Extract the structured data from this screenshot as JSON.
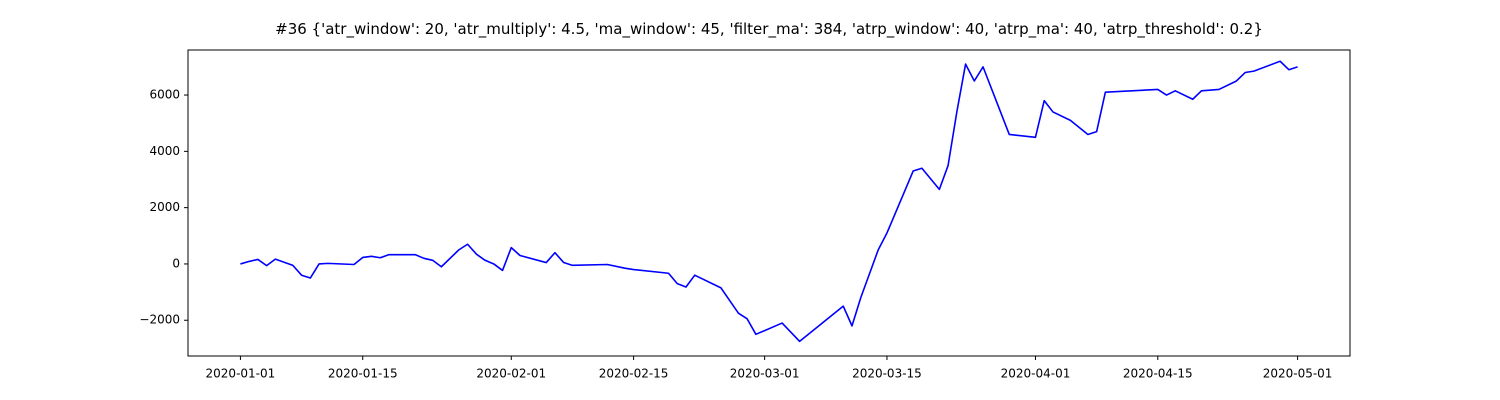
{
  "chart_data": {
    "type": "line",
    "title": "#36 {'atr_window': 20, 'atr_multiply': 4.5, 'ma_window': 45, 'filter_ma': 384, 'atrp_window': 40, 'atrp_ma': 40, 'atrp_threshold': 0.2}",
    "x": [
      "2020-01-01",
      "2020-01-02",
      "2020-01-03",
      "2020-01-04",
      "2020-01-05",
      "2020-01-07",
      "2020-01-08",
      "2020-01-09",
      "2020-01-10",
      "2020-01-11",
      "2020-01-14",
      "2020-01-15",
      "2020-01-16",
      "2020-01-17",
      "2020-01-18",
      "2020-01-21",
      "2020-01-22",
      "2020-01-23",
      "2020-01-24",
      "2020-01-26",
      "2020-01-27",
      "2020-01-28",
      "2020-01-29",
      "2020-01-30",
      "2020-01-31",
      "2020-02-01",
      "2020-02-02",
      "2020-02-05",
      "2020-02-06",
      "2020-02-07",
      "2020-02-08",
      "2020-02-12",
      "2020-02-14",
      "2020-02-15",
      "2020-02-19",
      "2020-02-20",
      "2020-02-21",
      "2020-02-22",
      "2020-02-25",
      "2020-02-26",
      "2020-02-27",
      "2020-02-28",
      "2020-02-29",
      "2020-03-03",
      "2020-03-05",
      "2020-03-10",
      "2020-03-11",
      "2020-03-12",
      "2020-03-14",
      "2020-03-15",
      "2020-03-18",
      "2020-03-19",
      "2020-03-21",
      "2020-03-22",
      "2020-03-23",
      "2020-03-24",
      "2020-03-25",
      "2020-03-26",
      "2020-03-28",
      "2020-03-29",
      "2020-04-01",
      "2020-04-02",
      "2020-04-03",
      "2020-04-05",
      "2020-04-07",
      "2020-04-08",
      "2020-04-09",
      "2020-04-15",
      "2020-04-16",
      "2020-04-17",
      "2020-04-19",
      "2020-04-20",
      "2020-04-22",
      "2020-04-24",
      "2020-04-25",
      "2020-04-26",
      "2020-04-29",
      "2020-04-30",
      "2020-05-01"
    ],
    "values": [
      0,
      90,
      160,
      -60,
      170,
      -50,
      -400,
      -500,
      0,
      20,
      -20,
      230,
      270,
      220,
      330,
      330,
      200,
      130,
      -100,
      500,
      700,
      350,
      130,
      0,
      -230,
      580,
      300,
      50,
      400,
      50,
      -50,
      -20,
      -150,
      -200,
      -330,
      -700,
      -820,
      -400,
      -850,
      -1300,
      -1750,
      -1950,
      -2500,
      -2100,
      -2750,
      -1500,
      -2200,
      -1200,
      500,
      1100,
      3300,
      3400,
      2650,
      3500,
      5400,
      7100,
      6500,
      7000,
      5400,
      4600,
      4500,
      5800,
      5400,
      5100,
      4600,
      4700,
      6100,
      6200,
      6000,
      6150,
      5850,
      6150,
      6200,
      6500,
      6800,
      6850,
      7200,
      6900,
      7000
    ],
    "color": "#0000ff",
    "xlim": [
      "2019-12-26",
      "2020-05-07"
    ],
    "xticks": [
      "2020-01-01",
      "2020-01-15",
      "2020-02-01",
      "2020-02-15",
      "2020-03-01",
      "2020-03-15",
      "2020-04-01",
      "2020-04-15",
      "2020-05-01"
    ],
    "ylim": [
      -3270,
      7600
    ],
    "yticks": [
      {
        "value": -2000,
        "label": "−2000"
      },
      0,
      2000,
      4000,
      6000
    ],
    "grid": false
  }
}
